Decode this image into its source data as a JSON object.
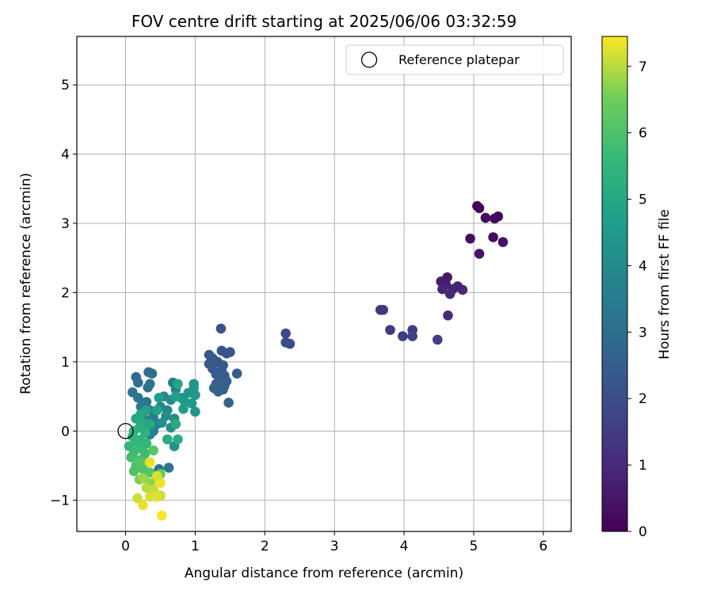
{
  "chart_data": {
    "type": "scatter",
    "title": "FOV centre drift starting at 2025/06/06 03:32:59",
    "xlabel": "Angular distance from reference (arcmin)",
    "ylabel": "Rotation from reference (arcmin)",
    "xlim": [
      -0.7,
      6.4
    ],
    "ylim": [
      -1.45,
      5.7
    ],
    "xticks": [
      0,
      1,
      2,
      3,
      4,
      5,
      6
    ],
    "yticks": [
      -1,
      0,
      1,
      2,
      3,
      4,
      5
    ],
    "xtick_labels": [
      "0",
      "1",
      "2",
      "3",
      "4",
      "5",
      "6"
    ],
    "ytick_labels": [
      "−1",
      "0",
      "1",
      "2",
      "3",
      "4",
      "5"
    ],
    "grid": true,
    "legend": {
      "label": "Reference platepar",
      "position": "top-right"
    },
    "reference_point": {
      "x": 0,
      "y": 0
    },
    "colorbar": {
      "label": "Hours from first FF file",
      "range": [
        0,
        7.45
      ],
      "ticks": [
        0,
        1,
        2,
        3,
        4,
        5,
        6,
        7
      ],
      "tick_labels": [
        "0",
        "1",
        "2",
        "3",
        "4",
        "5",
        "6",
        "7"
      ],
      "colormap": "viridis"
    },
    "points": [
      {
        "x": 5.05,
        "y": 3.25,
        "c": 0.05
      },
      {
        "x": 5.08,
        "y": 3.22,
        "c": 0.1
      },
      {
        "x": 5.35,
        "y": 3.1,
        "c": 0.15
      },
      {
        "x": 5.3,
        "y": 3.07,
        "c": 0.2
      },
      {
        "x": 5.17,
        "y": 3.08,
        "c": 0.25
      },
      {
        "x": 5.28,
        "y": 2.8,
        "c": 0.3
      },
      {
        "x": 4.95,
        "y": 2.78,
        "c": 0.35
      },
      {
        "x": 5.42,
        "y": 2.73,
        "c": 0.4
      },
      {
        "x": 5.08,
        "y": 2.56,
        "c": 0.45
      },
      {
        "x": 4.62,
        "y": 2.22,
        "c": 0.6
      },
      {
        "x": 4.53,
        "y": 2.16,
        "c": 0.65
      },
      {
        "x": 4.6,
        "y": 2.12,
        "c": 0.7
      },
      {
        "x": 4.77,
        "y": 2.09,
        "c": 0.75
      },
      {
        "x": 4.7,
        "y": 2.05,
        "c": 0.8
      },
      {
        "x": 4.55,
        "y": 2.05,
        "c": 0.85
      },
      {
        "x": 4.84,
        "y": 2.04,
        "c": 0.9
      },
      {
        "x": 4.66,
        "y": 1.98,
        "c": 0.95
      },
      {
        "x": 4.63,
        "y": 1.67,
        "c": 1.0
      },
      {
        "x": 3.66,
        "y": 1.75,
        "c": 1.3
      },
      {
        "x": 3.7,
        "y": 1.75,
        "c": 1.35
      },
      {
        "x": 3.8,
        "y": 1.46,
        "c": 1.4
      },
      {
        "x": 4.12,
        "y": 1.46,
        "c": 1.45
      },
      {
        "x": 3.98,
        "y": 1.37,
        "c": 1.5
      },
      {
        "x": 4.12,
        "y": 1.37,
        "c": 1.55
      },
      {
        "x": 4.48,
        "y": 1.32,
        "c": 1.6
      },
      {
        "x": 2.3,
        "y": 1.41,
        "c": 1.8
      },
      {
        "x": 2.3,
        "y": 1.28,
        "c": 1.85
      },
      {
        "x": 2.36,
        "y": 1.26,
        "c": 1.9
      },
      {
        "x": 1.37,
        "y": 1.48,
        "c": 2.1
      },
      {
        "x": 1.38,
        "y": 1.16,
        "c": 2.15
      },
      {
        "x": 1.5,
        "y": 1.14,
        "c": 2.2
      },
      {
        "x": 1.45,
        "y": 1.12,
        "c": 2.22
      },
      {
        "x": 1.2,
        "y": 1.1,
        "c": 2.25
      },
      {
        "x": 1.25,
        "y": 1.05,
        "c": 2.28
      },
      {
        "x": 1.32,
        "y": 1.0,
        "c": 2.3
      },
      {
        "x": 1.2,
        "y": 0.97,
        "c": 2.33
      },
      {
        "x": 1.4,
        "y": 0.95,
        "c": 2.35
      },
      {
        "x": 1.25,
        "y": 0.9,
        "c": 2.38
      },
      {
        "x": 1.38,
        "y": 0.88,
        "c": 2.4
      },
      {
        "x": 1.6,
        "y": 0.83,
        "c": 2.42
      },
      {
        "x": 1.3,
        "y": 0.82,
        "c": 2.45
      },
      {
        "x": 1.42,
        "y": 0.8,
        "c": 2.47
      },
      {
        "x": 1.35,
        "y": 0.75,
        "c": 2.5
      },
      {
        "x": 1.45,
        "y": 0.72,
        "c": 2.52
      },
      {
        "x": 1.3,
        "y": 0.68,
        "c": 2.55
      },
      {
        "x": 1.42,
        "y": 0.65,
        "c": 2.57
      },
      {
        "x": 1.27,
        "y": 0.62,
        "c": 2.6
      },
      {
        "x": 1.4,
        "y": 0.6,
        "c": 2.62
      },
      {
        "x": 1.33,
        "y": 0.57,
        "c": 2.65
      },
      {
        "x": 1.48,
        "y": 0.41,
        "c": 2.7
      },
      {
        "x": 0.15,
        "y": 0.78,
        "c": 2.9
      },
      {
        "x": 0.33,
        "y": 0.85,
        "c": 2.95
      },
      {
        "x": 0.38,
        "y": 0.83,
        "c": 3.0
      },
      {
        "x": 0.18,
        "y": 0.7,
        "c": 3.05
      },
      {
        "x": 0.35,
        "y": 0.68,
        "c": 3.1
      },
      {
        "x": 0.32,
        "y": 0.63,
        "c": 3.15
      },
      {
        "x": 0.1,
        "y": 0.56,
        "c": 3.2
      },
      {
        "x": 0.18,
        "y": 0.48,
        "c": 3.25
      },
      {
        "x": 0.3,
        "y": 0.42,
        "c": 3.3
      },
      {
        "x": 0.22,
        "y": 0.35,
        "c": 3.35
      },
      {
        "x": 0.35,
        "y": 0.3,
        "c": 3.4
      },
      {
        "x": 0.25,
        "y": 0.25,
        "c": 3.45
      },
      {
        "x": 0.4,
        "y": 0.2,
        "c": 3.5
      },
      {
        "x": 0.3,
        "y": 0.15,
        "c": 3.55
      },
      {
        "x": 0.45,
        "y": 0.1,
        "c": 3.6
      },
      {
        "x": 0.28,
        "y": 0.05,
        "c": 3.65
      },
      {
        "x": 0.4,
        "y": 0.0,
        "c": 3.7
      },
      {
        "x": 0.35,
        "y": -0.05,
        "c": 3.75
      },
      {
        "x": 0.48,
        "y": -0.55,
        "c": 3.2
      },
      {
        "x": 0.62,
        "y": -0.53,
        "c": 3.3
      },
      {
        "x": 0.5,
        "y": 0.35,
        "c": 3.8
      },
      {
        "x": 0.6,
        "y": 0.3,
        "c": 3.85
      },
      {
        "x": 0.68,
        "y": 0.7,
        "c": 3.5
      },
      {
        "x": 0.72,
        "y": 0.6,
        "c": 3.9
      },
      {
        "x": 0.55,
        "y": 0.5,
        "c": 3.95
      },
      {
        "x": 0.65,
        "y": 0.45,
        "c": 4.0
      },
      {
        "x": 0.58,
        "y": 0.22,
        "c": 4.05
      },
      {
        "x": 0.7,
        "y": 0.18,
        "c": 4.1
      },
      {
        "x": 0.52,
        "y": 0.12,
        "c": 4.15
      },
      {
        "x": 0.65,
        "y": 0.05,
        "c": 4.2
      },
      {
        "x": 0.7,
        "y": -0.22,
        "c": 4.25
      },
      {
        "x": 0.8,
        "y": 0.48,
        "c": 4.3
      },
      {
        "x": 0.9,
        "y": 0.55,
        "c": 4.35
      },
      {
        "x": 0.98,
        "y": 0.68,
        "c": 4.4
      },
      {
        "x": 0.98,
        "y": 0.62,
        "c": 4.45
      },
      {
        "x": 1.0,
        "y": 0.52,
        "c": 4.5
      },
      {
        "x": 0.85,
        "y": 0.42,
        "c": 4.55
      },
      {
        "x": 0.95,
        "y": 0.4,
        "c": 4.6
      },
      {
        "x": 0.83,
        "y": 0.32,
        "c": 4.65
      },
      {
        "x": 1.0,
        "y": 0.28,
        "c": 4.3
      },
      {
        "x": 0.48,
        "y": 0.48,
        "c": 4.7
      },
      {
        "x": 0.75,
        "y": 0.68,
        "c": 4.9
      },
      {
        "x": 0.72,
        "y": 0.5,
        "c": 4.75
      },
      {
        "x": 0.45,
        "y": 0.3,
        "c": 4.8
      },
      {
        "x": 0.3,
        "y": 0.3,
        "c": 4.85
      },
      {
        "x": 0.22,
        "y": 0.25,
        "c": 4.9
      },
      {
        "x": 0.15,
        "y": 0.18,
        "c": 4.95
      },
      {
        "x": 0.25,
        "y": 0.12,
        "c": 5.0
      },
      {
        "x": 0.35,
        "y": 0.1,
        "c": 5.05
      },
      {
        "x": 0.72,
        "y": 0.1,
        "c": 5.1
      },
      {
        "x": 0.6,
        "y": -0.12,
        "c": 5.15
      },
      {
        "x": 0.75,
        "y": -0.12,
        "c": 5.2
      },
      {
        "x": 0.2,
        "y": 0.05,
        "c": 5.25
      },
      {
        "x": 0.12,
        "y": 0.0,
        "c": 5.3
      },
      {
        "x": 0.28,
        "y": -0.02,
        "c": 5.35
      },
      {
        "x": 0.1,
        "y": -0.08,
        "c": 5.4
      },
      {
        "x": 0.22,
        "y": -0.12,
        "c": 5.45
      },
      {
        "x": 0.15,
        "y": -0.15,
        "c": 5.5
      },
      {
        "x": 0.3,
        "y": -0.18,
        "c": 5.55
      },
      {
        "x": 0.05,
        "y": -0.22,
        "c": 5.6
      },
      {
        "x": 0.2,
        "y": -0.25,
        "c": 5.65
      },
      {
        "x": 0.12,
        "y": -0.3,
        "c": 5.7
      },
      {
        "x": 0.28,
        "y": -0.32,
        "c": 5.75
      },
      {
        "x": 0.08,
        "y": -0.38,
        "c": 5.8
      },
      {
        "x": 0.2,
        "y": -0.42,
        "c": 5.85
      },
      {
        "x": 0.3,
        "y": -0.45,
        "c": 5.9
      },
      {
        "x": 0.15,
        "y": -0.5,
        "c": 5.95
      },
      {
        "x": 0.25,
        "y": -0.55,
        "c": 6.0
      },
      {
        "x": 0.12,
        "y": -0.58,
        "c": 6.05
      },
      {
        "x": 0.35,
        "y": -0.6,
        "c": 6.1
      },
      {
        "x": 0.2,
        "y": -0.45,
        "c": 6.15
      },
      {
        "x": 0.4,
        "y": -0.28,
        "c": 6.2
      },
      {
        "x": 0.32,
        "y": -0.45,
        "c": 6.3
      },
      {
        "x": 0.5,
        "y": -0.62,
        "c": 6.4
      },
      {
        "x": 0.45,
        "y": -0.7,
        "c": 6.5
      },
      {
        "x": 0.2,
        "y": -0.7,
        "c": 6.6
      },
      {
        "x": 0.35,
        "y": -0.75,
        "c": 6.7
      },
      {
        "x": 0.25,
        "y": -0.68,
        "c": 6.8
      },
      {
        "x": 0.48,
        "y": -0.72,
        "c": 6.9
      },
      {
        "x": 0.3,
        "y": -0.82,
        "c": 7.0
      },
      {
        "x": 0.4,
        "y": -0.85,
        "c": 7.05
      },
      {
        "x": 0.5,
        "y": -0.93,
        "c": 7.1
      },
      {
        "x": 0.17,
        "y": -0.97,
        "c": 7.15
      },
      {
        "x": 0.35,
        "y": -0.95,
        "c": 7.2
      },
      {
        "x": 0.45,
        "y": -0.95,
        "c": 7.25
      },
      {
        "x": 0.25,
        "y": -1.07,
        "c": 7.3
      },
      {
        "x": 0.5,
        "y": -0.75,
        "c": 7.35
      },
      {
        "x": 0.52,
        "y": -1.22,
        "c": 7.4
      },
      {
        "x": 0.35,
        "y": -0.45,
        "c": 7.3
      },
      {
        "x": 0.45,
        "y": -0.65,
        "c": 7.2
      }
    ]
  }
}
